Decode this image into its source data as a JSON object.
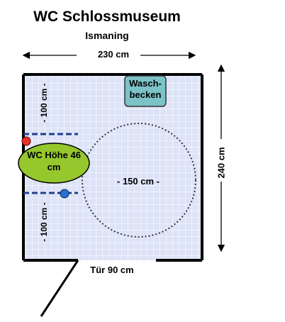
{
  "title": "WC Schlossmuseum",
  "subtitle": "Ismaning",
  "dimensions": {
    "width": "230 cm",
    "height": "240 cm",
    "door": "Tür 90 cm",
    "wc_distance_top": "- 100 cm -",
    "wc_distance_bottom": "- 100 cm -",
    "turning_circle": "- 150 cm -"
  },
  "fixtures": {
    "wc": "WC Höhe 46 cm",
    "sink": "Wasch-becken"
  },
  "colors": {
    "floor_tile": "#dde3f7",
    "tile_line": "#ffffff",
    "wc_fill": "#96c72d",
    "sink_fill": "#7cc3c8",
    "grab_bar": "#1f3f8f",
    "marker_red": "#e8322a",
    "marker_blue": "#2a6fd1",
    "wall": "#000000"
  }
}
